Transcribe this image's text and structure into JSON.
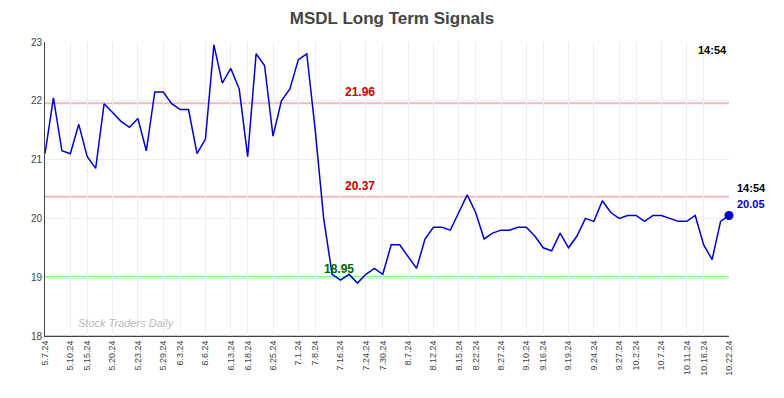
{
  "chart_data": {
    "type": "line",
    "title": "MSDL Long Term Signals",
    "categories": [
      "5.7.24",
      null,
      null,
      "5.10.24",
      null,
      "5.15.24",
      null,
      null,
      "5.20.24",
      null,
      null,
      "5.23.24",
      null,
      null,
      "5.29.24",
      null,
      "6.3.24",
      null,
      null,
      "6.6.24",
      null,
      null,
      "6.13.24",
      null,
      "6.18.24",
      null,
      null,
      "6.25.24",
      null,
      null,
      "7.1.24",
      null,
      "7.8.24",
      null,
      null,
      "7.16.24",
      null,
      null,
      "7.24.24",
      null,
      "7.30.24",
      null,
      null,
      "8.7.24",
      null,
      null,
      "8.12.24",
      null,
      null,
      "8.15.24",
      null,
      "8.22.24",
      null,
      null,
      "8.27.24",
      null,
      null,
      "9.10.24",
      null,
      "9.16.24",
      null,
      null,
      "9.19.24",
      null,
      null,
      "9.24.24",
      null,
      null,
      "9.27.24",
      null,
      "10.2.24",
      null,
      null,
      "10.7.24",
      null,
      null,
      "10.11.24",
      null,
      "10.16.24",
      null,
      null,
      "10.22.24"
    ],
    "values": [
      21.1,
      22.05,
      21.15,
      21.1,
      21.6,
      21.05,
      20.85,
      21.95,
      21.8,
      21.65,
      21.55,
      21.7,
      21.15,
      22.15,
      22.15,
      21.95,
      21.85,
      21.85,
      21.1,
      21.35,
      22.95,
      22.3,
      22.55,
      22.2,
      21.05,
      22.8,
      22.6,
      21.4,
      22.0,
      22.2,
      22.7,
      22.8,
      21.5,
      20.0,
      19.05,
      18.95,
      19.05,
      18.9,
      19.05,
      19.15,
      19.05,
      19.55,
      19.55,
      19.35,
      19.15,
      19.65,
      19.85,
      19.85,
      19.8,
      20.1,
      20.4,
      20.1,
      19.65,
      19.75,
      19.8,
      19.8,
      19.85,
      19.85,
      19.7,
      19.5,
      19.45,
      19.75,
      19.5,
      19.7,
      20.0,
      19.95,
      20.3,
      20.1,
      20.0,
      20.05,
      20.05,
      19.95,
      20.05,
      20.05,
      20.0,
      19.95,
      19.95,
      20.05,
      19.55,
      19.3,
      19.95,
      20.05
    ],
    "color": "#0000cc",
    "ylim": [
      18,
      23
    ],
    "yticks": [
      18,
      19,
      20,
      21,
      22,
      23
    ],
    "grid": true,
    "hlines": [
      {
        "value": 21.96,
        "color": "#f4b8b8"
      },
      {
        "value": 20.37,
        "color": "#f4b8b8"
      },
      {
        "value": 19.0,
        "color": "#90ee90"
      },
      {
        "value": 18.0,
        "color": "#999999"
      }
    ],
    "annotations": [
      {
        "text": "21.96",
        "y": 21.96,
        "color": "#cc0000"
      },
      {
        "text": "20.37",
        "y": 20.37,
        "color": "#cc0000"
      },
      {
        "text": "18.95",
        "y": 18.95,
        "color": "#006600"
      }
    ],
    "last_point_labels": [
      {
        "text": "20.05",
        "color": "#0000cc"
      },
      {
        "text": "14:54",
        "color": "#000000"
      }
    ],
    "corner_text": {
      "text": "14:54",
      "color": "#000000"
    },
    "watermark": {
      "text": "Stock Traders Daily",
      "y": 18.08,
      "color": "#bbbbbb"
    }
  }
}
